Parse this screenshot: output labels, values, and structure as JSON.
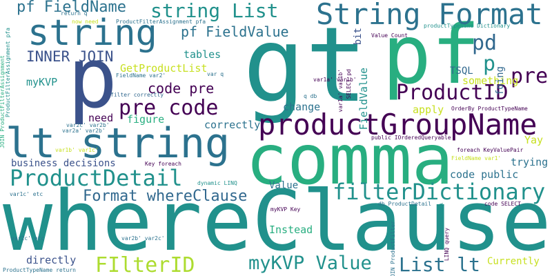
{
  "colors": {
    "dark_purple": "#440154",
    "indigo": "#3b528b",
    "blue": "#31688e",
    "teal_blue": "#2c728e",
    "teal": "#21918c",
    "green": "#28ae80",
    "light_green": "#5ec962",
    "yellow_green": "#addc30",
    "yellow": "#c7e020"
  },
  "words": {
    "whereClause": "whereClause",
    "gt": "gt",
    "comma": "comma",
    "pf_big": "pf",
    "p_big": "p",
    "lt_string": "lt string",
    "string_big": "string",
    "productGroupName": "productGroupName",
    "string_format": "String Format",
    "filterDictionary": "filterDictionary",
    "productDetail": "ProductDetail",
    "productID": "ProductID",
    "pre_code": "pre code",
    "string_list": "string List",
    "pf_fieldname": "pf FieldName",
    "pf_fieldvalue": "pf FieldValue",
    "filterID": "FIlterID",
    "mykvp_value": "myKVP Value",
    "list_lt": "List lt",
    "format_whereclause": "Format whereClause",
    "inner_join": "INNER JOIN",
    "pd": "pd",
    "p_small": "p",
    "pre": "pre",
    "code_pre": "code pre",
    "getproductlist": "GetProductList",
    "mykvp": "myKVP",
    "tables": "tables",
    "tsql": "TSQL",
    "something": "something",
    "business_decisions": "business decisions",
    "need": "need",
    "figure": "figure",
    "correctly": "correctly",
    "change": "change",
    "apply": "apply",
    "yay": "Yay",
    "trying": "trying",
    "code_public": "code public",
    "value": "Value",
    "instead": "Instead",
    "directly": "directly",
    "currently": "Currently",
    "fieldvalue_v": "FieldValue",
    "bit": "bit",
    "foing": "foing",
    "var2c_var2b": "var2c' var2b'",
    "var2a_var2b": "var2a' var2b'",
    "var1b_var1c": "var1b' var1c'",
    "var1c_etc": "var1c' etc",
    "var2c_etc": "var2c' etc",
    "var2b_var2c": "var2b' var2c'",
    "return_q": "return q",
    "now_need": "now need",
    "productfilterassignment_pfa": "ProductFilterAssignment pfa",
    "value_count": "Value Count",
    "producttypename_dictionary": "productTypeName Dictionary",
    "fieldname_var2": "FieldName var2'",
    "var_q": "var q",
    "filter_correctly": "filter correctly",
    "q_db": "q db",
    "orderby_producttypename": "OrderBy ProductTypeName",
    "public_iorderedqueryable": "public IOrderedQueryable",
    "foreach_keyvaluepair": "foreach KeyValuePair",
    "fieldname_var1": "FieldName var1'",
    "key_foreach": "Key foreach",
    "dynamic_linq": "dynamic LINQ",
    "mykvp_key": "myKVP Key",
    "db_productdetail": "db ProductDetail",
    "code_select": "code SELECT",
    "producttypename_return": "ProductTypeName return",
    "select_pd": "SELECT pd",
    "var1a_var1b": "var1a' var1b'",
    "join_productfilterassignment": "JOIN ProductFilterAssignment",
    "productfiltera": "ProductFilterA",
    "join_productfilter": "JOIN ProductFilter",
    "linq_query": "LINQ query",
    "productfilter": "ProductFilter",
    "productdetail_pd": "ProductDetail pd"
  }
}
